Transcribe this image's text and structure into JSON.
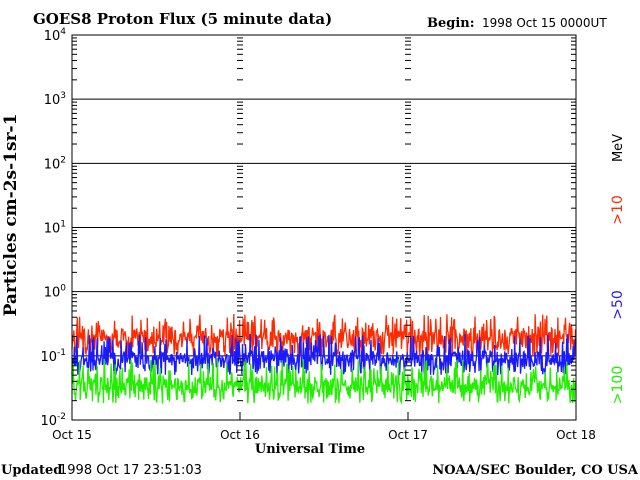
{
  "chart_data": {
    "type": "line",
    "title": "GOES8 Proton Flux (5 minute data)",
    "begin_label": "Begin:",
    "begin_value": "1998 Oct 15 0000UT",
    "xlabel": "Universal Time",
    "ylabel": "Particles cm-2s-1sr-1",
    "x_ticks": [
      "Oct 15",
      "Oct 16",
      "Oct 17",
      "Oct 18"
    ],
    "x_range_days": [
      0,
      3
    ],
    "y_scale": "log",
    "ylim": [
      0.01,
      10000
    ],
    "y_ticks": [
      {
        "value": 0.01,
        "base": "10",
        "exp": "-2"
      },
      {
        "value": 0.1,
        "base": "10",
        "exp": "-1"
      },
      {
        "value": 1,
        "base": "10",
        "exp": "0"
      },
      {
        "value": 10,
        "base": "10",
        "exp": "1"
      },
      {
        "value": 100,
        "base": "10",
        "exp": "2"
      },
      {
        "value": 1000,
        "base": "10",
        "exp": "3"
      },
      {
        "value": 10000,
        "base": "10",
        "exp": "4"
      }
    ],
    "gridlines": "horizontal at each decade",
    "legend_unit": "MeV",
    "series": [
      {
        "name": ">10",
        "color": "#ff2a00",
        "typical": 0.2,
        "range": [
          0.1,
          0.45
        ]
      },
      {
        "name": ">50",
        "color": "#1a1aff",
        "typical": 0.09,
        "range": [
          0.05,
          0.22
        ]
      },
      {
        "name": ">100",
        "color": "#22ee00",
        "typical": 0.035,
        "range": [
          0.018,
          0.09
        ]
      }
    ]
  },
  "footer": {
    "updated_label": "Updated",
    "updated_value": "1998 Oct 17 23:51:03",
    "credit": "NOAA/SEC Boulder, CO USA"
  }
}
